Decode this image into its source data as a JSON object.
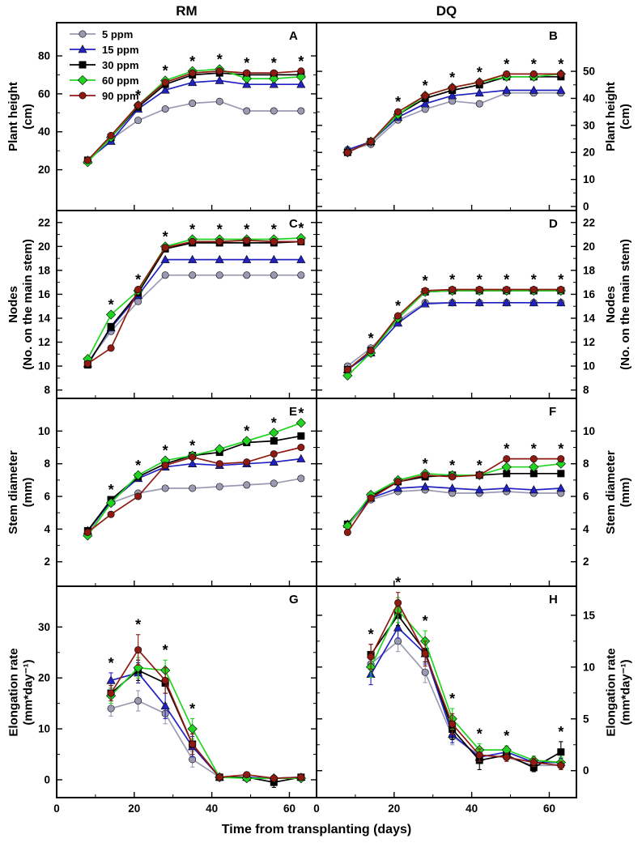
{
  "chart_data": {
    "type": "line",
    "title": "",
    "xlabel": "Time from transplanting (days)",
    "xlim": [
      0,
      67
    ],
    "xticks": [
      0,
      20,
      40,
      60
    ],
    "xminor": [
      10,
      30,
      50
    ],
    "column_titles": [
      "RM",
      "DQ"
    ],
    "row_axis_titles": [
      {
        "lines": [
          "Plant height",
          "(cm)"
        ]
      },
      {
        "lines": [
          "Nodes",
          "(No. on the main stem)"
        ]
      },
      {
        "lines": [
          "Stem diameter",
          "(mm)"
        ]
      },
      {
        "lines": [
          "Elongation rate",
          "(mm*day⁻¹)"
        ]
      }
    ],
    "legend": [
      {
        "label": "5 ppm",
        "color": "#9a9ab2",
        "marker": "circle"
      },
      {
        "label": "15 ppm",
        "color": "#2222c2",
        "marker": "triangle"
      },
      {
        "label": "30 ppm",
        "color": "#000000",
        "marker": "square"
      },
      {
        "label": "60 ppm",
        "color": "#22d422",
        "marker": "diamond"
      },
      {
        "label": "90 ppm",
        "color": "#8e1a12",
        "marker": "circle"
      }
    ],
    "panels": [
      {
        "letter": "A",
        "row": 0,
        "col": 0,
        "ylabel": "Plant height (cm)",
        "ylim": [
          -1.5,
          97.5
        ],
        "yticks": [
          20,
          40,
          60,
          80
        ],
        "x": [
          8,
          14,
          21,
          28,
          35,
          42,
          49,
          56,
          63
        ],
        "series": [
          [
            25,
            36,
            46,
            52,
            55,
            56,
            51,
            51,
            51
          ],
          [
            25,
            35,
            52,
            62,
            66,
            67,
            65,
            65,
            65
          ],
          [
            25,
            37,
            53,
            65,
            70,
            71,
            70,
            70,
            70
          ],
          [
            24,
            37,
            54,
            67,
            72,
            73,
            68,
            68,
            69
          ],
          [
            25,
            38,
            54,
            66,
            71,
            72,
            71,
            71,
            72
          ]
        ],
        "asterisks": [
          21,
          28,
          35,
          42,
          49,
          56,
          63
        ]
      },
      {
        "letter": "B",
        "row": 0,
        "col": 1,
        "ylabel": "Plant height (cm)",
        "ylim": [
          -1.5,
          68
        ],
        "yticks": [
          0,
          10,
          20,
          30,
          40,
          50
        ],
        "x": [
          8,
          14,
          21,
          28,
          35,
          42,
          49,
          56,
          63
        ],
        "series": [
          [
            21,
            23,
            32,
            36,
            39,
            38,
            42,
            42,
            42
          ],
          [
            21,
            24,
            33,
            38,
            41,
            42,
            43,
            43,
            43
          ],
          [
            20,
            24,
            34,
            40,
            43,
            45,
            48,
            48,
            48
          ],
          [
            20,
            24,
            34,
            41,
            44,
            46,
            48,
            48,
            49
          ],
          [
            20,
            24,
            35,
            41,
            44,
            46,
            49,
            49,
            49
          ]
        ],
        "asterisks": [
          21,
          28,
          35,
          42,
          49,
          56,
          63
        ]
      },
      {
        "letter": "C",
        "row": 1,
        "col": 0,
        "ylabel": "Nodes (No. on the main stem)",
        "ylim": [
          7.3,
          23
        ],
        "yticks": [
          8,
          10,
          12,
          14,
          16,
          18,
          20,
          22
        ],
        "x": [
          8,
          14,
          21,
          28,
          35,
          42,
          49,
          56,
          63
        ],
        "series": [
          [
            10.3,
            12.9,
            15.4,
            17.6,
            17.6,
            17.6,
            17.6,
            17.6,
            17.6
          ],
          [
            10.2,
            13.2,
            15.9,
            18.9,
            18.9,
            18.9,
            18.9,
            18.9,
            18.9
          ],
          [
            10.1,
            13.3,
            16.1,
            19.8,
            20.3,
            20.3,
            20.3,
            20.3,
            20.4
          ],
          [
            10.6,
            14.3,
            16.3,
            20.0,
            20.6,
            20.6,
            20.6,
            20.6,
            20.7
          ],
          [
            10.2,
            11.5,
            16.4,
            19.9,
            20.4,
            20.4,
            20.5,
            20.4,
            20.4
          ]
        ],
        "asterisks": [
          14,
          21,
          28,
          35,
          42,
          49,
          56,
          63
        ]
      },
      {
        "letter": "D",
        "row": 1,
        "col": 1,
        "ylabel": "Nodes (No. on the main stem)",
        "ylim": [
          7.3,
          23
        ],
        "yticks": [
          8,
          10,
          12,
          14,
          16,
          18,
          20,
          22
        ],
        "x": [
          8,
          14,
          21,
          28,
          35,
          42,
          49,
          56,
          63
        ],
        "series": [
          [
            10.0,
            11.5,
            13.8,
            15.3,
            15.3,
            15.3,
            15.3,
            15.3,
            15.3
          ],
          [
            9.7,
            11.1,
            13.6,
            15.2,
            15.3,
            15.3,
            15.3,
            15.3,
            15.3
          ],
          [
            9.7,
            11.3,
            14.0,
            16.2,
            16.3,
            16.3,
            16.3,
            16.3,
            16.3
          ],
          [
            9.2,
            11.1,
            14.0,
            16.2,
            16.3,
            16.3,
            16.3,
            16.3,
            16.3
          ],
          [
            9.7,
            11.3,
            14.2,
            16.3,
            16.4,
            16.4,
            16.4,
            16.4,
            16.4
          ]
        ],
        "asterisks": [
          14,
          21,
          28,
          35,
          42,
          49,
          56,
          63
        ]
      },
      {
        "letter": "E",
        "row": 2,
        "col": 0,
        "ylabel": "Stem diameter (mm)",
        "ylim": [
          0.5,
          12
        ],
        "yticks": [
          2,
          4,
          6,
          8,
          10
        ],
        "x": [
          8,
          14,
          21,
          28,
          35,
          42,
          49,
          56,
          63
        ],
        "series": [
          [
            3.8,
            5.6,
            6.2,
            6.5,
            6.5,
            6.6,
            6.7,
            6.8,
            7.1
          ],
          [
            3.9,
            5.7,
            7.1,
            7.8,
            8.0,
            7.9,
            8.0,
            8.1,
            8.3
          ],
          [
            3.9,
            5.8,
            7.2,
            8.0,
            8.5,
            8.7,
            9.3,
            9.4,
            9.7
          ],
          [
            3.6,
            5.6,
            7.3,
            8.2,
            8.5,
            8.9,
            9.4,
            9.9,
            10.5
          ],
          [
            3.8,
            4.9,
            6.0,
            7.9,
            8.4,
            8.0,
            8.1,
            8.6,
            9.0
          ]
        ],
        "asterisks": [
          14,
          21,
          28,
          35,
          49,
          56,
          63
        ]
      },
      {
        "letter": "F",
        "row": 2,
        "col": 1,
        "ylabel": "Stem diameter (mm)",
        "ylim": [
          0.5,
          12
        ],
        "yticks": [
          2,
          4,
          6,
          8,
          10
        ],
        "x": [
          8,
          14,
          21,
          28,
          35,
          42,
          49,
          56,
          63
        ],
        "series": [
          [
            4.2,
            5.8,
            6.3,
            6.4,
            6.2,
            6.2,
            6.3,
            6.2,
            6.2
          ],
          [
            4.3,
            5.9,
            6.5,
            6.6,
            6.5,
            6.4,
            6.5,
            6.4,
            6.5
          ],
          [
            4.3,
            6.0,
            6.9,
            7.2,
            7.3,
            7.3,
            7.4,
            7.4,
            7.4
          ],
          [
            4.2,
            6.1,
            7.0,
            7.4,
            7.3,
            7.3,
            7.8,
            7.8,
            8.0
          ],
          [
            3.8,
            5.9,
            6.9,
            7.3,
            7.2,
            7.3,
            8.3,
            8.3,
            8.3
          ]
        ],
        "asterisks": [
          28,
          35,
          42,
          49,
          56,
          63
        ]
      },
      {
        "letter": "G",
        "row": 3,
        "col": 0,
        "ylabel": "Elongation rate (mm*day⁻¹)",
        "ylim": [
          -3.5,
          38
        ],
        "yticks": [
          0,
          10,
          20,
          30
        ],
        "x": [
          14,
          21,
          28,
          35,
          42,
          49,
          56,
          63
        ],
        "series": [
          [
            14,
            15.5,
            13,
            4,
            0.5,
            0.3,
            0.2,
            0.5
          ],
          [
            19.5,
            21,
            14.5,
            6.5,
            0.5,
            0.5,
            0.3,
            0.5
          ],
          [
            17,
            21.5,
            19,
            7,
            0.5,
            0.5,
            -0.5,
            0.5
          ],
          [
            16.5,
            22,
            21.5,
            10,
            0.5,
            0.3,
            0.3,
            0.3
          ],
          [
            17,
            25.5,
            19.5,
            7,
            0.5,
            1.0,
            0.3,
            0.5
          ]
        ],
        "errors": [
          [
            1.5,
            2,
            2,
            1.5,
            0.4,
            0.4,
            0.4,
            0.4
          ],
          [
            1.5,
            2,
            2.5,
            2,
            0.4,
            0.4,
            0.4,
            0.4
          ],
          [
            1.5,
            2,
            2,
            2,
            0.4,
            0.4,
            1,
            0.4
          ],
          [
            1.5,
            2,
            2,
            2,
            0.4,
            0.4,
            0.4,
            0.4
          ],
          [
            1.5,
            3,
            2.5,
            2,
            0.4,
            0.5,
            0.4,
            0.4
          ]
        ],
        "asterisks": [
          14,
          21,
          28,
          35
        ]
      },
      {
        "letter": "H",
        "row": 3,
        "col": 1,
        "ylabel": "Elongation rate (mm*day⁻¹)",
        "ylim": [
          -2.6,
          17.8
        ],
        "yticks": [
          0,
          5,
          10,
          15
        ],
        "x": [
          14,
          21,
          28,
          35,
          42,
          49,
          56,
          63
        ],
        "series": [
          [
            10.3,
            12.5,
            9.5,
            3.3,
            1.5,
            1.3,
            0.5,
            0.5
          ],
          [
            9.3,
            13.8,
            11.3,
            3.5,
            1.3,
            1.8,
            0.8,
            0.8
          ],
          [
            11.2,
            15.0,
            11.5,
            4.0,
            1.0,
            1.5,
            0.3,
            1.8
          ],
          [
            10.0,
            15.5,
            12.5,
            5.0,
            2.0,
            2.0,
            1.0,
            0.8
          ],
          [
            11.0,
            16.2,
            11.3,
            4.5,
            1.5,
            1.3,
            0.8,
            0.5
          ]
        ],
        "errors": [
          [
            1,
            1,
            1,
            0.8,
            0.5,
            0.4,
            0.4,
            0.4
          ],
          [
            1,
            1,
            1,
            0.8,
            0.5,
            0.4,
            0.4,
            0.4
          ],
          [
            1,
            1,
            1,
            1,
            0.9,
            0.4,
            0.4,
            1
          ],
          [
            1,
            1.2,
            1,
            1,
            0.6,
            0.4,
            0.4,
            0.5
          ],
          [
            1.2,
            1,
            1.2,
            1,
            0.6,
            0.4,
            0.4,
            0.4
          ]
        ],
        "asterisks": [
          14,
          21,
          28,
          35,
          42,
          49,
          63
        ]
      }
    ]
  }
}
